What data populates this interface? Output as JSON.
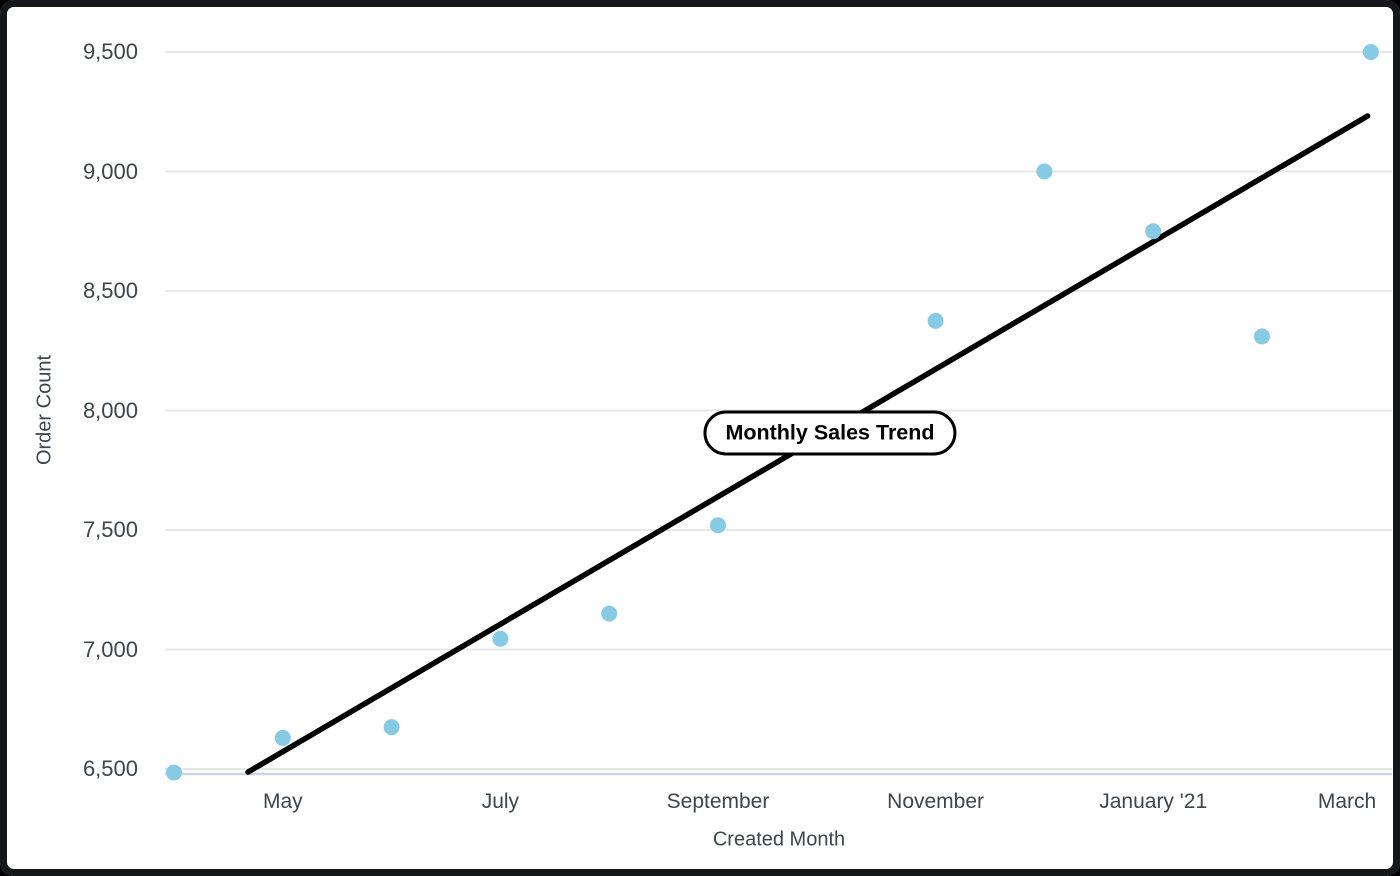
{
  "chart_data": {
    "type": "scatter",
    "title": "Monthly Sales Trend",
    "xlabel": "Created Month",
    "ylabel": "Order Count",
    "ylim": [
      6500,
      9500
    ],
    "grid": true,
    "legend": false,
    "y_ticks": [
      {
        "value": 6500,
        "label": "6,500"
      },
      {
        "value": 7000,
        "label": "7,000"
      },
      {
        "value": 7500,
        "label": "7,500"
      },
      {
        "value": 8000,
        "label": "8,000"
      },
      {
        "value": 8500,
        "label": "8,500"
      },
      {
        "value": 9000,
        "label": "9,000"
      },
      {
        "value": 9500,
        "label": "9,500"
      }
    ],
    "x_ticks": [
      {
        "month_index": 1,
        "label": "May"
      },
      {
        "month_index": 3,
        "label": "July"
      },
      {
        "month_index": 5,
        "label": "September"
      },
      {
        "month_index": 7,
        "label": "November"
      },
      {
        "month_index": 9,
        "label": "January '21"
      },
      {
        "month_index": 11,
        "label": "March"
      }
    ],
    "points": [
      {
        "month": "April",
        "month_index": 0,
        "value": 6485
      },
      {
        "month": "May",
        "month_index": 1,
        "value": 6630
      },
      {
        "month": "June",
        "month_index": 2,
        "value": 6675
      },
      {
        "month": "July",
        "month_index": 3,
        "value": 7045
      },
      {
        "month": "August",
        "month_index": 4,
        "value": 7150
      },
      {
        "month": "September",
        "month_index": 5,
        "value": 7520
      },
      {
        "month": "November",
        "month_index": 7,
        "value": 8375
      },
      {
        "month": "December",
        "month_index": 8,
        "value": 9000
      },
      {
        "month": "January '21",
        "month_index": 9,
        "value": 8750
      },
      {
        "month": "February",
        "month_index": 10,
        "value": 8310
      },
      {
        "month": "March",
        "month_index": 11,
        "value": 9500
      }
    ],
    "trend_line": {
      "start": {
        "month_index": 0.68,
        "value": 6487
      },
      "end": {
        "month_index": 10.97,
        "value": 9232
      }
    },
    "annotation": {
      "label": "Monthly Sales Trend"
    },
    "colors": {
      "point": "#86CAE4",
      "trend": "#000000",
      "gridline": "#e7e7e7",
      "baseline": "#ccd4e6",
      "text": "#3c464d",
      "frame": "#14181a"
    }
  }
}
